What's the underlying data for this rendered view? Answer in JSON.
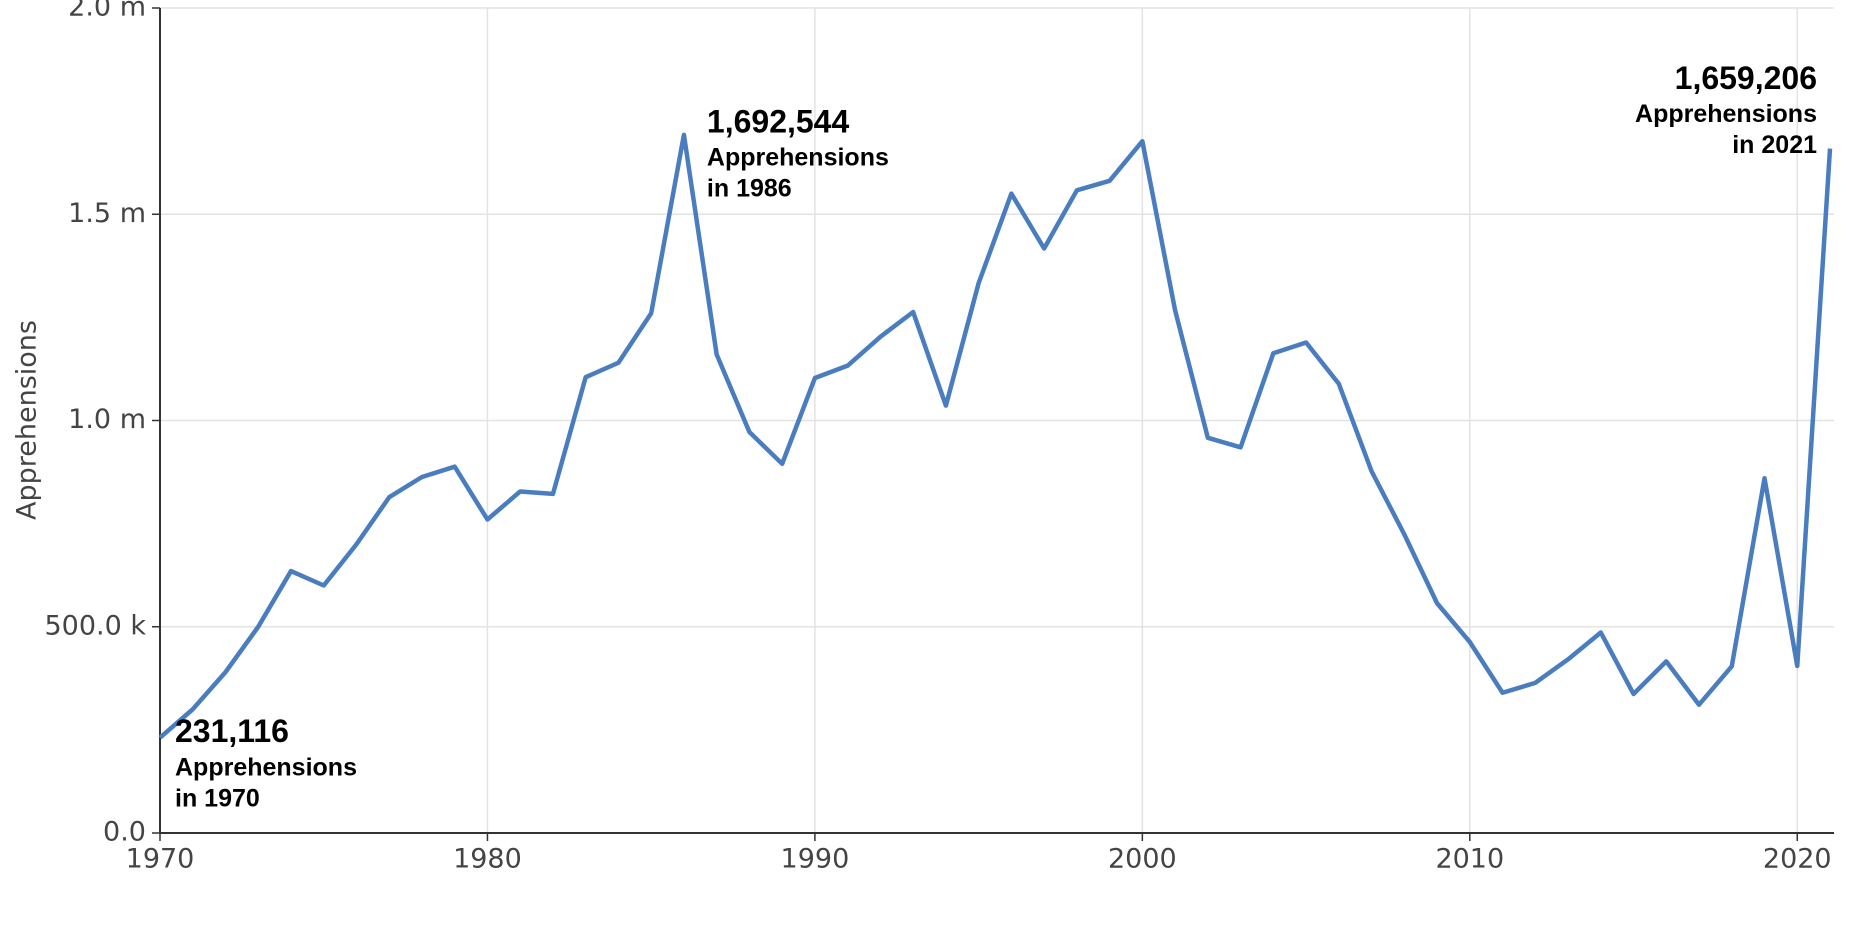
{
  "chart_data": {
    "type": "line",
    "y_label": "Apprehensions",
    "x": [
      1970,
      1971,
      1972,
      1973,
      1974,
      1975,
      1976,
      1977,
      1978,
      1979,
      1980,
      1981,
      1982,
      1983,
      1984,
      1985,
      1986,
      1987,
      1988,
      1989,
      1990,
      1991,
      1992,
      1993,
      1994,
      1995,
      1996,
      1997,
      1998,
      1999,
      2000,
      2001,
      2002,
      2003,
      2004,
      2005,
      2006,
      2007,
      2008,
      2009,
      2010,
      2011,
      2012,
      2013,
      2014,
      2015,
      2016,
      2017,
      2018,
      2019,
      2020,
      2021
    ],
    "series": [
      {
        "name": "Apprehensions",
        "color": "#4a7dc0",
        "values": [
          231116,
          300000,
          390000,
          500000,
          635000,
          600000,
          700000,
          814000,
          863000,
          888000,
          760000,
          828000,
          822000,
          1105000,
          1140000,
          1260000,
          1692544,
          1160000,
          972000,
          895000,
          1103000,
          1133000,
          1203000,
          1263000,
          1036000,
          1333000,
          1550000,
          1417000,
          1558000,
          1581000,
          1677000,
          1267000,
          958000,
          935000,
          1163000,
          1189000,
          1089000,
          877000,
          724000,
          557000,
          463000,
          340000,
          364000,
          421000,
          486000,
          337000,
          416000,
          311000,
          404000,
          860000,
          405000,
          1659206
        ]
      }
    ],
    "xlim": [
      1970,
      2021
    ],
    "xticks": [
      1970,
      1980,
      1990,
      2000,
      2010,
      2020
    ],
    "ylim": [
      0,
      2000000
    ],
    "yticks": [
      {
        "value": 0,
        "label": "0.0"
      },
      {
        "value": 500000,
        "label": "500.0 k"
      },
      {
        "value": 1000000,
        "label": "1.0 m"
      },
      {
        "value": 1500000,
        "label": "1.5 m"
      },
      {
        "value": 2000000,
        "label": "2.0 m"
      }
    ],
    "grid": true,
    "annotations": [
      {
        "x": 1970,
        "value": 231116,
        "label": "231,116",
        "lines": [
          "Apprehensions",
          "in 1970"
        ]
      },
      {
        "x": 1986,
        "value": 1692544,
        "label": "1,692,544",
        "lines": [
          "Apprehensions",
          "in 1986"
        ]
      },
      {
        "x": 2021,
        "value": 1659206,
        "label": "1,659,206",
        "lines": [
          "Apprehensions",
          "in 2021"
        ]
      }
    ]
  }
}
